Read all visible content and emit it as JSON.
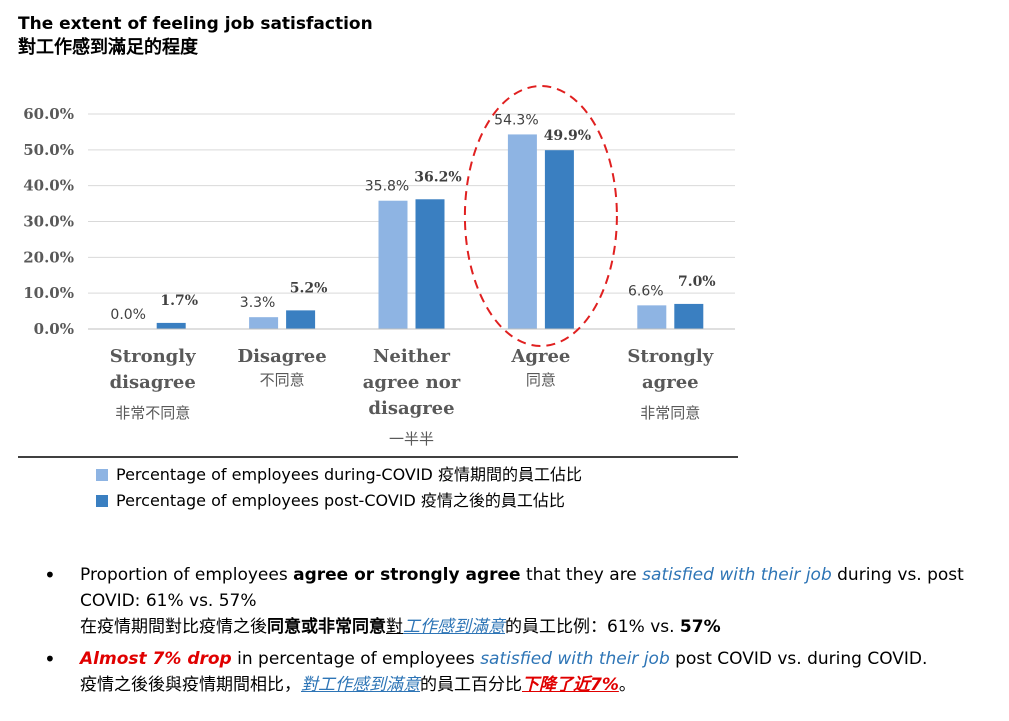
{
  "title": {
    "en": "The extent of feeling job satisfaction",
    "zh": "對工作感到滿足的程度"
  },
  "chart_data": {
    "type": "bar",
    "ylim": [
      0,
      60
    ],
    "yticks": [
      "0.0%",
      "10.0%",
      "20.0%",
      "30.0%",
      "40.0%",
      "50.0%",
      "60.0%"
    ],
    "categories": [
      {
        "en": [
          "Strongly",
          "disagree"
        ],
        "zh": "非常不同意"
      },
      {
        "en": [
          "Disagree"
        ],
        "zh": "不同意"
      },
      {
        "en": [
          "Neither",
          "agree nor",
          "disagree"
        ],
        "zh": "一半半"
      },
      {
        "en": [
          "Agree"
        ],
        "zh": "同意"
      },
      {
        "en": [
          "Strongly",
          "agree"
        ],
        "zh": "非常同意"
      }
    ],
    "series": [
      {
        "name": "Percentage of employees during-COVID 疫情期間的員工佔比",
        "color": "#8eb4e3",
        "values": [
          0.0,
          3.3,
          35.8,
          54.3,
          6.6
        ],
        "labels": [
          "0.0%",
          "3.3%",
          "35.8%",
          "54.3%",
          "6.6%"
        ]
      },
      {
        "name": "Percentage of employees post-COVID 疫情之後的員工佔比",
        "color": "#3a7fc1",
        "values": [
          1.7,
          5.2,
          36.2,
          49.9,
          7.0
        ],
        "labels": [
          "1.7%",
          "5.2%",
          "36.2%",
          "49.9%",
          "7.0%"
        ]
      }
    ],
    "grid": true,
    "highlight": {
      "category": "Agree",
      "color": "#e02020"
    }
  },
  "bullets": [
    {
      "line1": [
        {
          "t": "Proportion of employees ",
          "s": ""
        },
        {
          "t": "agree or strongly agree",
          "s": "b"
        },
        {
          "t": " that they are ",
          "s": ""
        },
        {
          "t": "satisfied with their job",
          "s": "blue-it"
        },
        {
          "t": " during vs. post COVID: 61% vs. 57%",
          "s": ""
        }
      ],
      "line2": [
        {
          "t": "在疫情期間對比疫情之後",
          "s": ""
        },
        {
          "t": "同意或非常同意",
          "s": "b"
        },
        {
          "t": "對",
          "s": "u"
        },
        {
          "t": "工作感到滿意",
          "s": "blue-it u"
        },
        {
          "t": "的員工比例：61% vs. ",
          "s": ""
        },
        {
          "t": "57%",
          "s": "b"
        }
      ]
    },
    {
      "line1": [
        {
          "t": "Almost 7% drop",
          "s": "red-it"
        },
        {
          "t": " in percentage of employees ",
          "s": ""
        },
        {
          "t": "satisfied with their job",
          "s": "blue-it"
        },
        {
          "t": " post COVID vs. during COVID.",
          "s": ""
        }
      ],
      "line2": [
        {
          "t": "疫情之後後與疫情期間相比，",
          "s": ""
        },
        {
          "t": "對工作感到滿意",
          "s": "blue-it u"
        },
        {
          "t": "的員工百分比",
          "s": ""
        },
        {
          "t": "下降了近7%",
          "s": "red-it u"
        },
        {
          "t": "。",
          "s": ""
        }
      ]
    }
  ]
}
